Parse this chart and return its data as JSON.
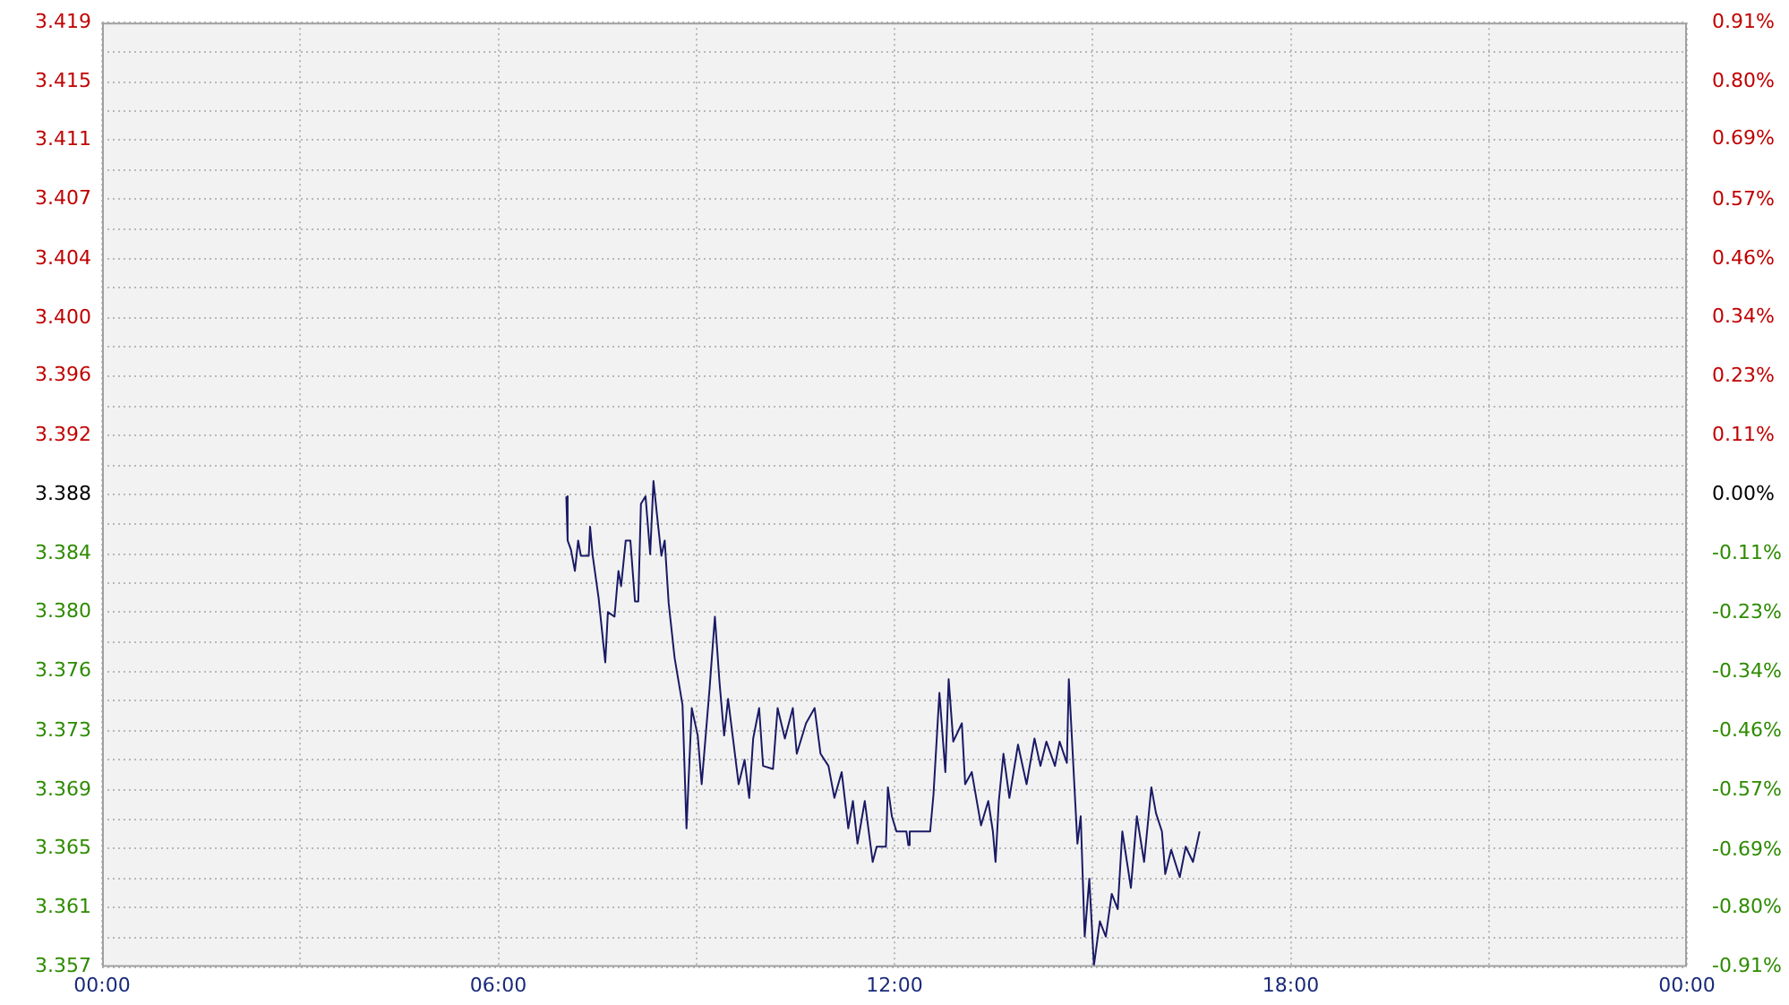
{
  "chart_data": {
    "type": "line",
    "x": [
      7.03,
      7.05,
      7.1,
      7.16,
      7.21,
      7.25,
      7.37,
      7.39,
      7.43,
      7.52,
      7.62,
      7.66,
      7.76,
      7.82,
      7.86,
      7.93,
      8.0,
      8.07,
      8.12,
      8.16,
      8.23,
      8.3,
      8.35,
      8.42,
      8.47,
      8.52,
      8.58,
      8.67,
      8.79,
      8.85,
      8.93,
      9.02,
      9.08,
      9.2,
      9.28,
      9.35,
      9.42,
      9.48,
      9.56,
      9.64,
      9.73,
      9.8,
      9.86,
      9.95,
      10.01,
      10.16,
      10.23,
      10.34,
      10.46,
      10.52,
      10.66,
      10.79,
      10.88,
      11.0,
      11.09,
      11.2,
      11.3,
      11.37,
      11.44,
      11.55,
      11.67,
      11.73,
      11.87,
      11.9,
      11.96,
      12.03,
      12.18,
      12.21,
      12.23,
      12.54,
      12.59,
      12.68,
      12.77,
      12.82,
      12.89,
      13.02,
      13.07,
      13.17,
      13.31,
      13.42,
      13.49,
      13.53,
      13.58,
      13.65,
      13.74,
      13.87,
      14.0,
      14.12,
      14.21,
      14.3,
      14.43,
      14.5,
      14.61,
      14.64,
      14.77,
      14.82,
      14.88,
      14.95,
      15.02,
      15.11,
      15.2,
      15.29,
      15.38,
      15.45,
      15.58,
      15.67,
      15.78,
      15.89,
      15.96,
      16.05,
      16.1,
      16.19,
      16.32,
      16.41,
      16.52,
      16.62
    ],
    "series": [
      {
        "color": "#1a1a66",
        "values": [
          3.3879,
          3.385,
          3.3844,
          3.383,
          3.385,
          3.384,
          3.384,
          3.3859,
          3.384,
          3.3812,
          3.377,
          3.3803,
          3.38,
          3.383,
          3.382,
          3.385,
          3.385,
          3.381,
          3.381,
          3.3874,
          3.3879,
          3.3841,
          3.3889,
          3.386,
          3.384,
          3.385,
          3.3809,
          3.3773,
          3.3742,
          3.3661,
          3.374,
          3.3722,
          3.369,
          3.3753,
          3.38,
          3.3757,
          3.3722,
          3.3746,
          3.3718,
          3.369,
          3.3706,
          3.3681,
          3.372,
          3.374,
          3.3702,
          3.37,
          3.374,
          3.372,
          3.374,
          3.371,
          3.373,
          3.374,
          3.371,
          3.3702,
          3.3681,
          3.3698,
          3.3661,
          3.3679,
          3.3651,
          3.3679,
          3.3639,
          3.3649,
          3.3649,
          3.3688,
          3.3669,
          3.3659,
          3.3659,
          3.365,
          3.3659,
          3.3659,
          3.3683,
          3.375,
          3.3698,
          3.3759,
          3.3718,
          3.373,
          3.369,
          3.3698,
          3.3663,
          3.3679,
          3.3659,
          3.3639,
          3.3679,
          3.371,
          3.3681,
          3.3716,
          3.369,
          3.372,
          3.3702,
          3.3718,
          3.3702,
          3.3718,
          3.3704,
          3.3759,
          3.3651,
          3.3669,
          3.359,
          3.3628,
          3.3571,
          3.36,
          3.359,
          3.3618,
          3.3608,
          3.3659,
          3.3622,
          3.3669,
          3.3639,
          3.3688,
          3.3671,
          3.3659,
          3.3631,
          3.3647,
          3.3629,
          3.3649,
          3.3639,
          3.3659
        ]
      }
    ],
    "xlim": [
      0,
      24
    ],
    "xticks": [
      {
        "value": 0,
        "label": "00:00"
      },
      {
        "value": 3,
        "label": null
      },
      {
        "value": 6,
        "label": "06:00"
      },
      {
        "value": 9,
        "label": null
      },
      {
        "value": 12,
        "label": "12:00"
      },
      {
        "value": 15,
        "label": null
      },
      {
        "value": 18,
        "label": "18:00"
      },
      {
        "value": 21,
        "label": null
      },
      {
        "value": 24,
        "label": "00:00"
      }
    ],
    "ylim": [
      3.357,
      3.419
    ],
    "yticks": [
      {
        "value": 3.357,
        "label": "3.357"
      },
      {
        "value": 3.3589,
        "label": null
      },
      {
        "value": 3.3609,
        "label": "3.361"
      },
      {
        "value": 3.3628,
        "label": null
      },
      {
        "value": 3.3648,
        "label": "3.365"
      },
      {
        "value": 3.3667,
        "label": null
      },
      {
        "value": 3.3686,
        "label": "3.369"
      },
      {
        "value": 3.3706,
        "label": null
      },
      {
        "value": 3.3725,
        "label": "3.373"
      },
      {
        "value": 3.3745,
        "label": null
      },
      {
        "value": 3.3764,
        "label": "3.376"
      },
      {
        "value": 3.3783,
        "label": null
      },
      {
        "value": 3.3803,
        "label": "3.380"
      },
      {
        "value": 3.3822,
        "label": null
      },
      {
        "value": 3.3841,
        "label": "3.384"
      },
      {
        "value": 3.3861,
        "label": null
      },
      {
        "value": 3.388,
        "label": "3.388"
      },
      {
        "value": 3.3899,
        "label": null
      },
      {
        "value": 3.3919,
        "label": "3.392"
      },
      {
        "value": 3.3938,
        "label": null
      },
      {
        "value": 3.3958,
        "label": "3.396"
      },
      {
        "value": 3.3977,
        "label": null
      },
      {
        "value": 3.3996,
        "label": "3.400"
      },
      {
        "value": 3.4016,
        "label": null
      },
      {
        "value": 3.4035,
        "label": "3.404"
      },
      {
        "value": 3.4054,
        "label": null
      },
      {
        "value": 3.4074,
        "label": "3.407"
      },
      {
        "value": 3.4093,
        "label": null
      },
      {
        "value": 3.4113,
        "label": "3.411"
      },
      {
        "value": 3.4132,
        "label": null
      },
      {
        "value": 3.4151,
        "label": "3.415"
      },
      {
        "value": 3.4171,
        "label": null
      },
      {
        "value": 3.419,
        "label": "3.419"
      }
    ],
    "y2lim": [
      -0.91,
      0.91
    ],
    "y2ticks": [
      {
        "value": -0.91,
        "label": "-0.91%"
      },
      {
        "value": -0.7963,
        "label": "-0.80%"
      },
      {
        "value": -0.685,
        "label": "-0.69%"
      },
      {
        "value": -0.5688,
        "label": "-0.57%"
      },
      {
        "value": -0.455,
        "label": "-0.46%"
      },
      {
        "value": -0.3413,
        "label": "-0.34%"
      },
      {
        "value": -0.2275,
        "label": "-0.23%"
      },
      {
        "value": -0.1138,
        "label": "-0.11%"
      },
      {
        "value": 0,
        "label": "0.00%"
      },
      {
        "value": 0.1138,
        "label": "0.11%"
      },
      {
        "value": 0.2275,
        "label": "0.23%"
      },
      {
        "value": 0.3413,
        "label": "0.34%"
      },
      {
        "value": 0.455,
        "label": "0.46%"
      },
      {
        "value": 0.5688,
        "label": "0.57%"
      },
      {
        "value": 0.685,
        "label": "0.69%"
      },
      {
        "value": 0.7963,
        "label": "0.80%"
      },
      {
        "value": 0.91,
        "label": "0.91%"
      }
    ],
    "grid": true,
    "legend": false,
    "marker": "none",
    "line_style": "solid"
  }
}
